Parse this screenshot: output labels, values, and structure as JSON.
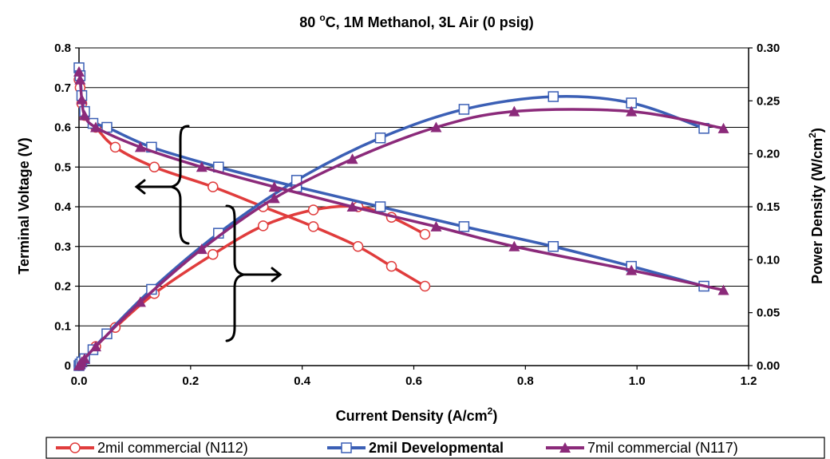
{
  "chart_data": {
    "type": "line",
    "title_parts": [
      "80 ",
      "o",
      "C, 1M Methanol, 3L Air (0 psig)"
    ],
    "xlabel_parts": [
      "Current Density (A/cm",
      "2",
      ")"
    ],
    "ylabel": "Terminal Voltage (V)",
    "y2label_parts": [
      "Power Density (W/cm",
      "2",
      ")"
    ],
    "xlim": [
      0,
      1.2
    ],
    "ylim": [
      0,
      0.8
    ],
    "y2lim": [
      0,
      0.3
    ],
    "xticks": [
      "0.0",
      "0.2",
      "0.4",
      "0.6",
      "0.8",
      "1.0",
      "1.2"
    ],
    "yticks": [
      "0",
      "0.1",
      "0.2",
      "0.3",
      "0.4",
      "0.5",
      "0.6",
      "0.7",
      "0.8"
    ],
    "y2ticks": [
      "0.00",
      "0.05",
      "0.10",
      "0.15",
      "0.20",
      "0.25",
      "0.30"
    ],
    "grid": "horizontal",
    "legend_position": "bottom",
    "series": [
      {
        "name": "2mil commercial (N112)",
        "color": "#e03c3c",
        "marker": "circle",
        "bold": false,
        "voltage": {
          "x": [
            0.0,
            0.002,
            0.005,
            0.01,
            0.03,
            0.065,
            0.135,
            0.24,
            0.33,
            0.42,
            0.5,
            0.56,
            0.62
          ],
          "y": [
            0.72,
            0.7,
            0.66,
            0.63,
            0.6,
            0.55,
            0.5,
            0.45,
            0.4,
            0.35,
            0.3,
            0.25,
            0.2
          ]
        },
        "power": {
          "x": [
            0.0,
            0.002,
            0.005,
            0.01,
            0.03,
            0.065,
            0.135,
            0.24,
            0.33,
            0.42,
            0.5,
            0.56,
            0.62
          ],
          "y": [
            0.0,
            0.001,
            0.003,
            0.006,
            0.018,
            0.036,
            0.068,
            0.105,
            0.132,
            0.147,
            0.15,
            0.14,
            0.124
          ]
        }
      },
      {
        "name": "2mil Developmental",
        "color": "#3b5fb5",
        "marker": "square",
        "bold": true,
        "voltage": {
          "x": [
            0.0,
            0.002,
            0.005,
            0.01,
            0.025,
            0.05,
            0.13,
            0.25,
            0.39,
            0.54,
            0.69,
            0.85,
            0.99,
            1.12
          ],
          "y": [
            0.75,
            0.73,
            0.68,
            0.64,
            0.61,
            0.6,
            0.55,
            0.5,
            0.45,
            0.4,
            0.35,
            0.3,
            0.25,
            0.2
          ]
        },
        "power": {
          "x": [
            0.0,
            0.002,
            0.005,
            0.01,
            0.025,
            0.05,
            0.13,
            0.25,
            0.39,
            0.54,
            0.69,
            0.85,
            0.99,
            1.12
          ],
          "y": [
            0.0,
            0.0015,
            0.0035,
            0.0065,
            0.015,
            0.03,
            0.072,
            0.125,
            0.175,
            0.215,
            0.242,
            0.254,
            0.248,
            0.224
          ]
        }
      },
      {
        "name": "7mil commercial (N117)",
        "color": "#8b2a7a",
        "marker": "triangle",
        "bold": false,
        "voltage": {
          "x": [
            0.0,
            0.002,
            0.005,
            0.01,
            0.03,
            0.11,
            0.22,
            0.35,
            0.49,
            0.64,
            0.78,
            0.99,
            1.155
          ],
          "y": [
            0.74,
            0.72,
            0.67,
            0.63,
            0.6,
            0.55,
            0.5,
            0.45,
            0.4,
            0.35,
            0.3,
            0.24,
            0.19
          ]
        },
        "power": {
          "x": [
            0.0,
            0.002,
            0.005,
            0.01,
            0.03,
            0.11,
            0.22,
            0.35,
            0.49,
            0.64,
            0.78,
            0.99,
            1.155
          ],
          "y": [
            0.0,
            0.0015,
            0.0035,
            0.0065,
            0.018,
            0.06,
            0.11,
            0.158,
            0.195,
            0.225,
            0.24,
            0.24,
            0.224
          ]
        }
      }
    ]
  }
}
